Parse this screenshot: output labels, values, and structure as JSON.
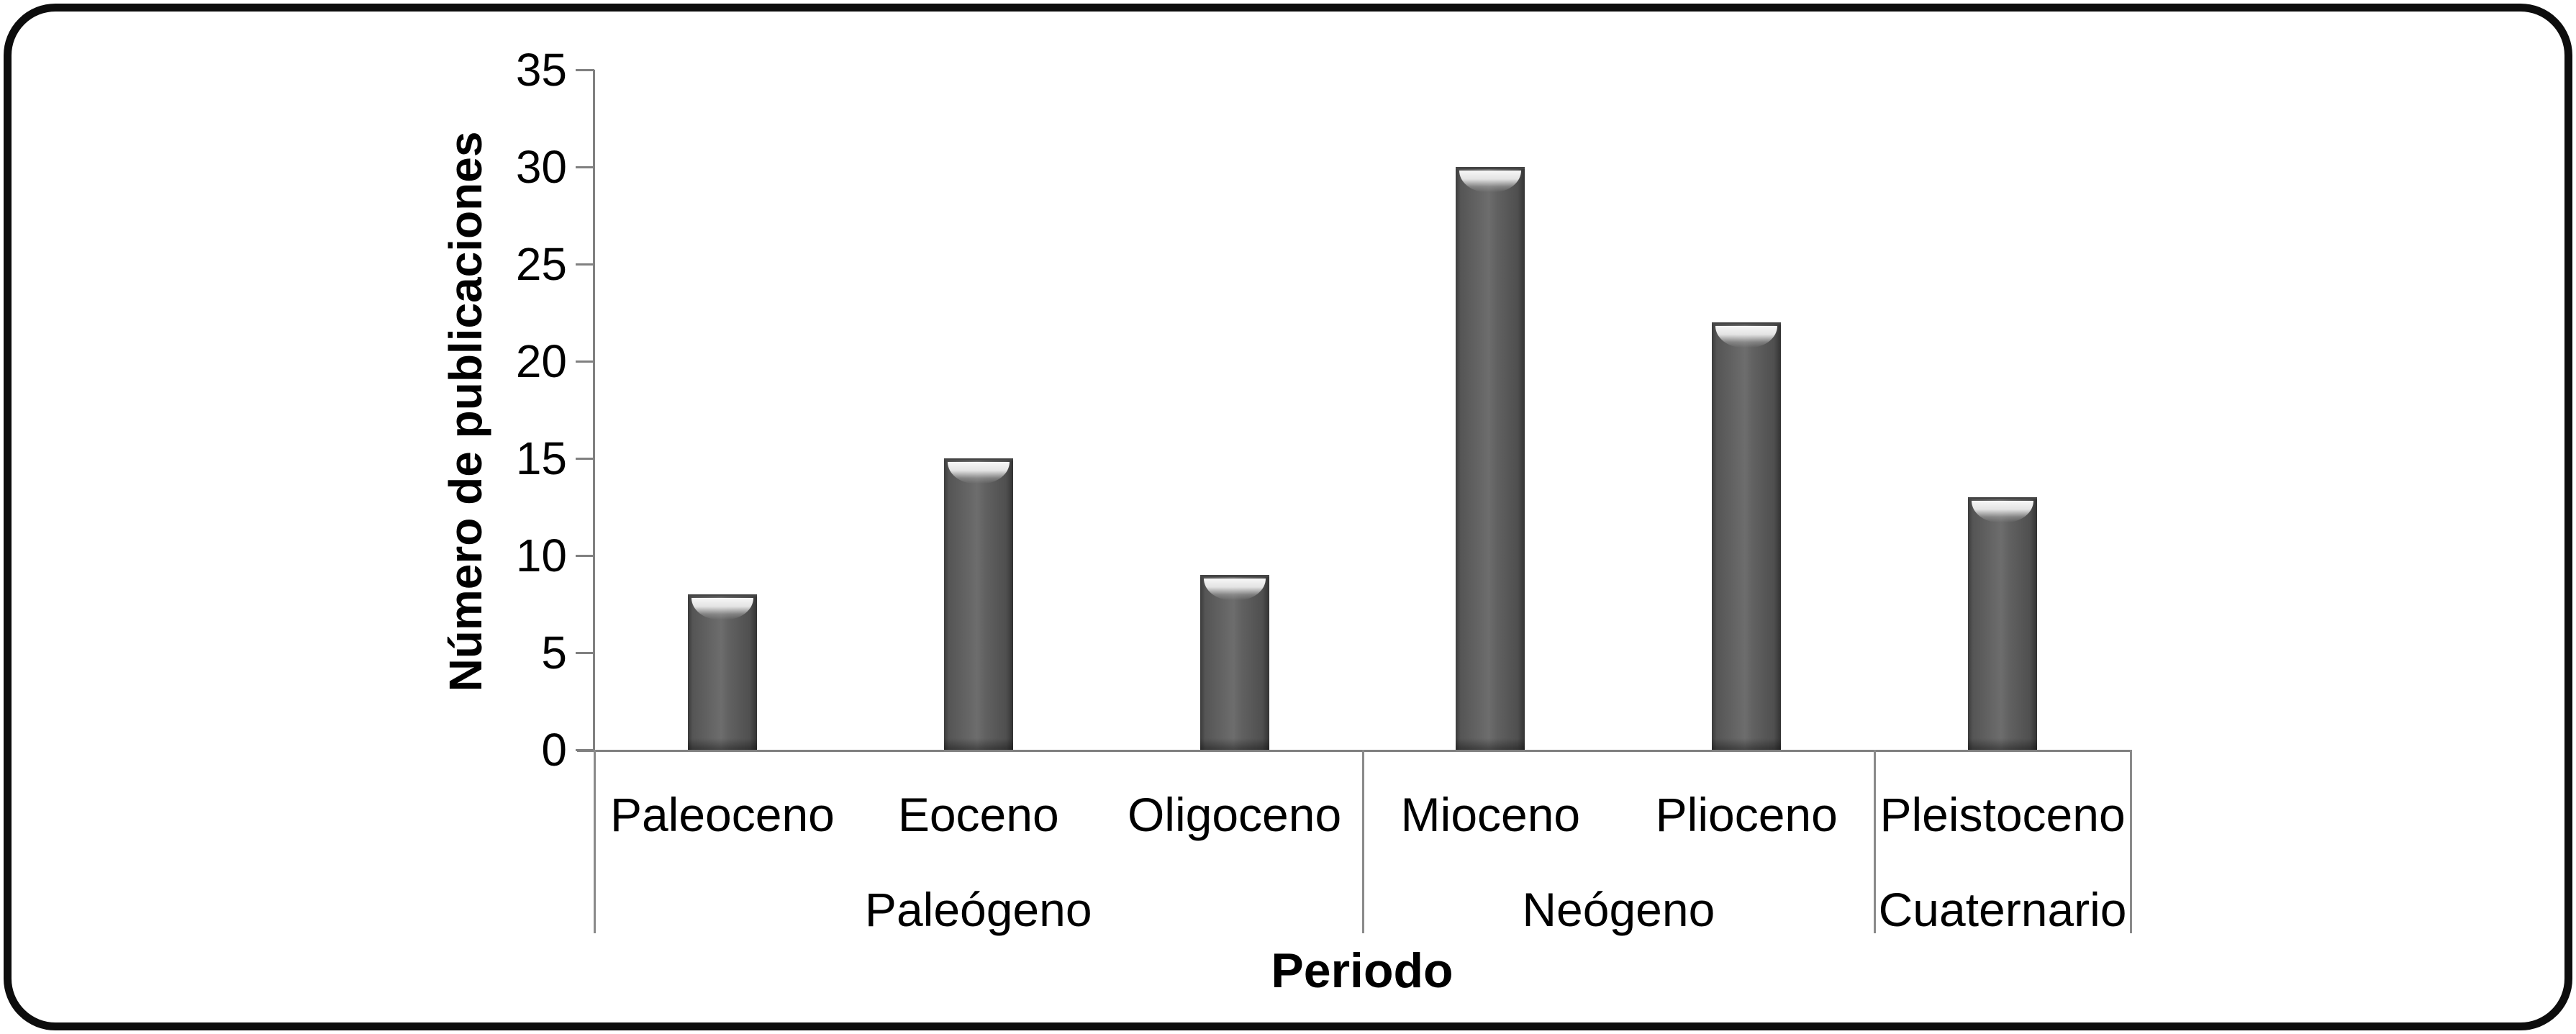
{
  "chart_data": {
    "type": "bar",
    "title": "",
    "ylabel": "Número de publicaciones",
    "xlabel": "Periodo",
    "ylim": [
      0,
      35
    ],
    "yticks": [
      0,
      5,
      10,
      15,
      20,
      25,
      30,
      35
    ],
    "grid": false,
    "legend_position": "none",
    "categories": [
      "Paleoceno",
      "Eoceno",
      "Oligoceno",
      "Mioceno",
      "Plioceno",
      "Pleistoceno"
    ],
    "values": [
      8,
      15,
      9,
      30,
      22,
      13
    ],
    "groups": [
      {
        "label": "Paleógeno",
        "categories": [
          "Paleoceno",
          "Eoceno",
          "Oligoceno"
        ],
        "values": [
          8,
          15,
          9
        ]
      },
      {
        "label": "Neógeno",
        "categories": [
          "Mioceno",
          "Plioceno"
        ],
        "values": [
          30,
          22
        ]
      },
      {
        "label": "Cuaternario",
        "categories": [
          "Pleistoceno"
        ],
        "values": [
          13
        ]
      }
    ],
    "colors": {
      "bar_body": "#5f5f5f",
      "bar_edge": "#3a3a3a",
      "bar_highlight": "#f2f2f2",
      "axis": "#808080",
      "text": "#000000",
      "frame": "#0d0d0d",
      "background": "#ffffff"
    }
  }
}
